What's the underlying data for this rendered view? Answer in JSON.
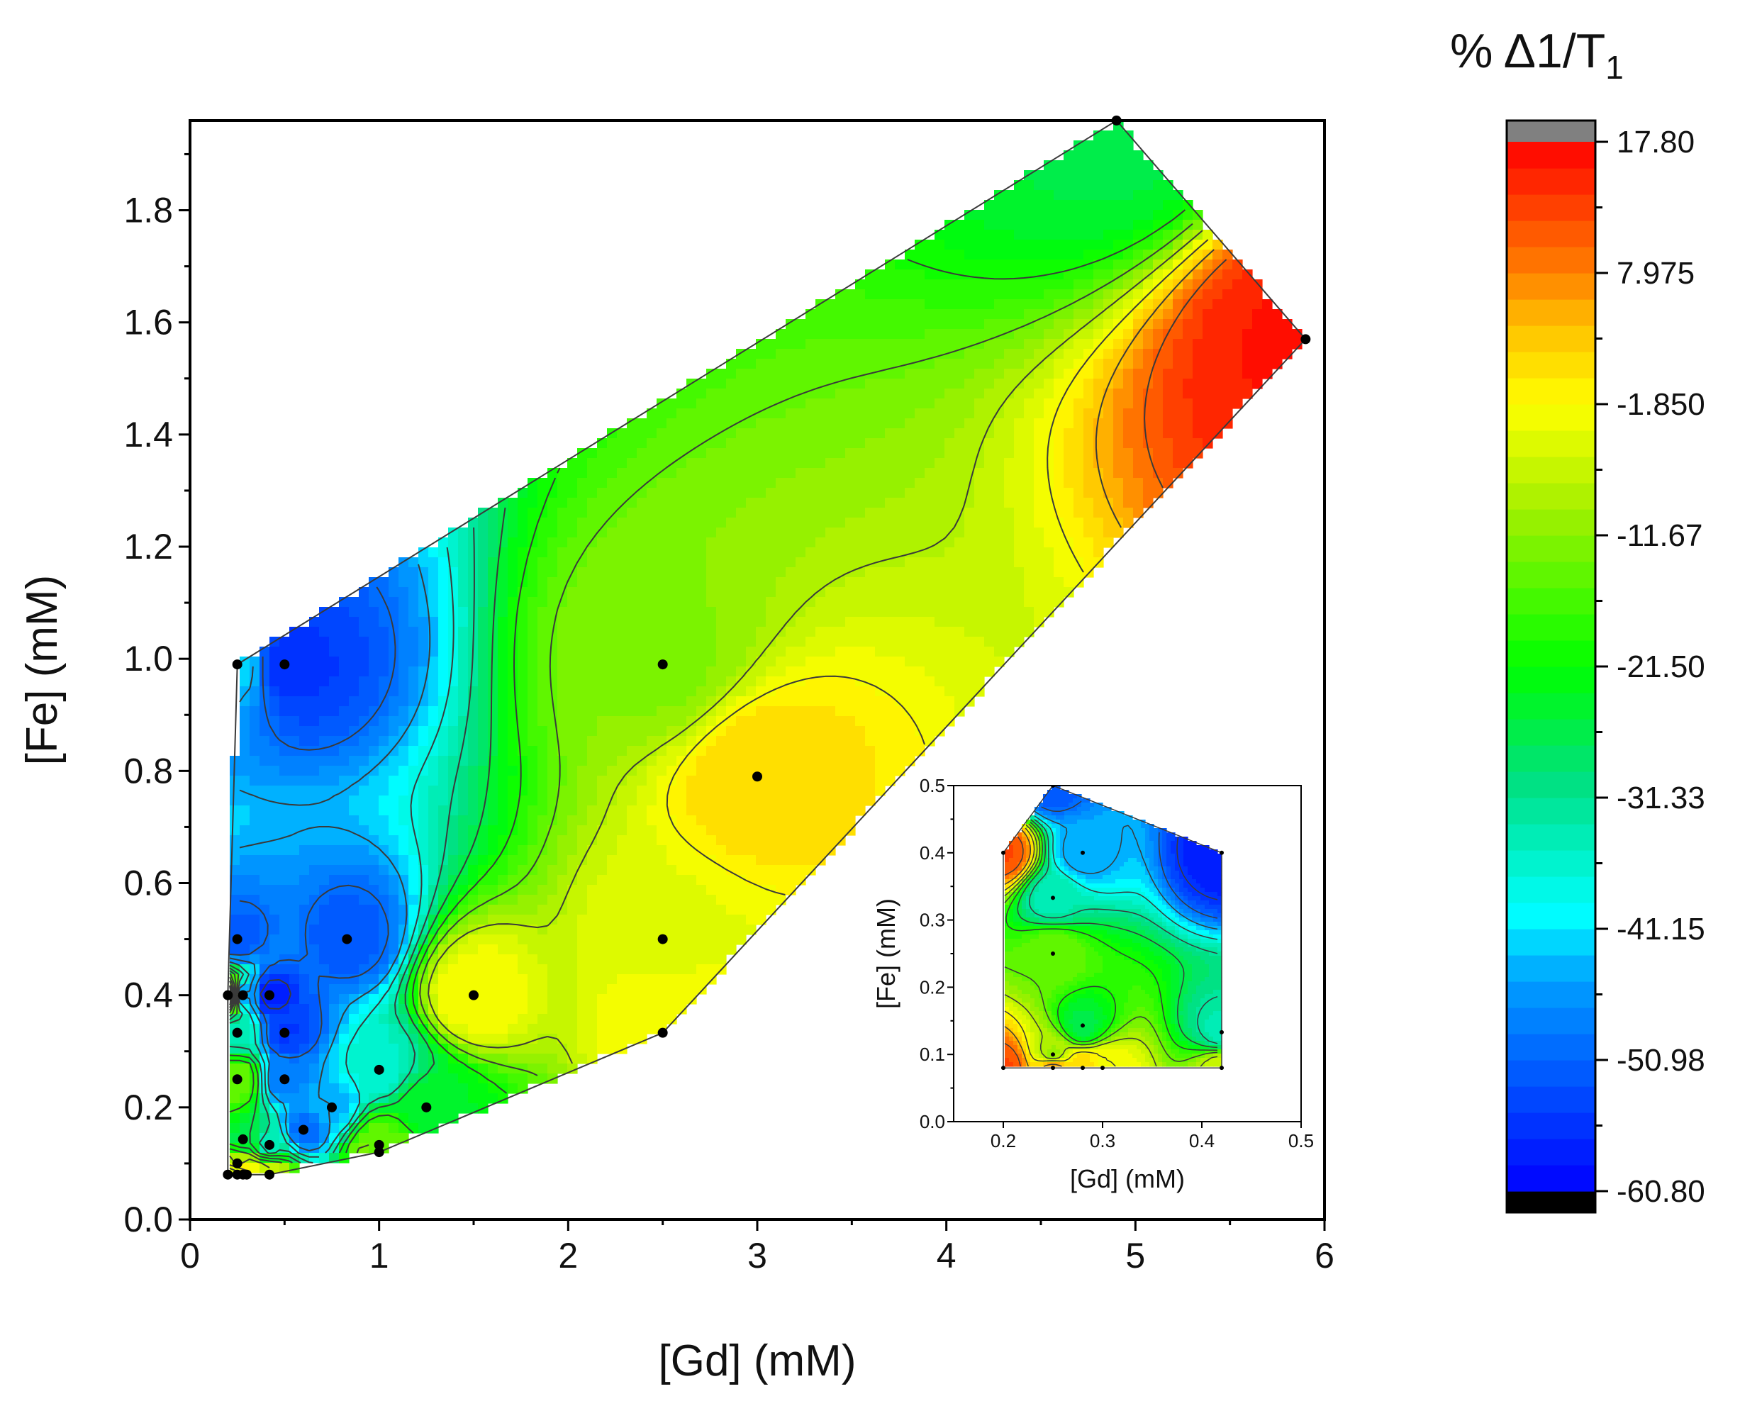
{
  "chart_data": [
    {
      "type": "contour",
      "name": "main",
      "title": "",
      "xlabel": "[Gd] (mM)",
      "ylabel": "[Fe] (mM)",
      "xlim": [
        0,
        6
      ],
      "ylim": [
        0,
        1.96
      ],
      "x_ticks": [
        0,
        1,
        2,
        3,
        4,
        5,
        6
      ],
      "x_tick_labels": [
        "0",
        "1",
        "2",
        "3",
        "4",
        "5",
        "6"
      ],
      "y_ticks": [
        0.0,
        0.2,
        0.4,
        0.6,
        0.8,
        1.0,
        1.2,
        1.4,
        1.6,
        1.8
      ],
      "y_tick_labels": [
        "0.0",
        "0.2",
        "0.4",
        "0.6",
        "0.8",
        "1.0",
        "1.2",
        "1.4",
        "1.6",
        "1.8"
      ],
      "z_label": "% Δ1/T1",
      "points": [
        {
          "x": 0.2,
          "y": 0.08,
          "z": 12
        },
        {
          "x": 0.25,
          "y": 0.08,
          "z": 6
        },
        {
          "x": 0.28,
          "y": 0.08,
          "z": 2
        },
        {
          "x": 0.3,
          "y": 0.08,
          "z": -2
        },
        {
          "x": 0.42,
          "y": 0.08,
          "z": -6
        },
        {
          "x": 0.25,
          "y": 0.1,
          "z": -10
        },
        {
          "x": 0.28,
          "y": 0.143,
          "z": -26
        },
        {
          "x": 0.42,
          "y": 0.133,
          "z": -34
        },
        {
          "x": 0.6,
          "y": 0.16,
          "z": -50
        },
        {
          "x": 0.75,
          "y": 0.2,
          "z": -44
        },
        {
          "x": 1.0,
          "y": 0.12,
          "z": -10
        },
        {
          "x": 1.0,
          "y": 0.133,
          "z": -16
        },
        {
          "x": 1.0,
          "y": 0.267,
          "z": -36
        },
        {
          "x": 1.25,
          "y": 0.2,
          "z": -24
        },
        {
          "x": 0.25,
          "y": 0.25,
          "z": -14
        },
        {
          "x": 0.5,
          "y": 0.25,
          "z": -48
        },
        {
          "x": 0.25,
          "y": 0.333,
          "z": -34
        },
        {
          "x": 0.5,
          "y": 0.333,
          "z": -55
        },
        {
          "x": 0.2,
          "y": 0.4,
          "z": 12
        },
        {
          "x": 0.28,
          "y": 0.4,
          "z": -45
        },
        {
          "x": 0.42,
          "y": 0.4,
          "z": -58
        },
        {
          "x": 0.25,
          "y": 0.5,
          "z": -52
        },
        {
          "x": 0.83,
          "y": 0.5,
          "z": -52
        },
        {
          "x": 1.5,
          "y": 0.4,
          "z": -2
        },
        {
          "x": 2.5,
          "y": 0.333,
          "z": -2
        },
        {
          "x": 2.5,
          "y": 0.5,
          "z": -4
        },
        {
          "x": 3.0,
          "y": 0.79,
          "z": 2
        },
        {
          "x": 2.5,
          "y": 0.99,
          "z": -12
        },
        {
          "x": 0.25,
          "y": 0.99,
          "z": -42
        },
        {
          "x": 0.5,
          "y": 0.99,
          "z": -56
        },
        {
          "x": 4.9,
          "y": 1.96,
          "z": -26
        },
        {
          "x": 5.9,
          "y": 1.57,
          "z": 16
        }
      ]
    },
    {
      "type": "contour",
      "name": "inset",
      "title": "",
      "xlabel": "[Gd] (mM)",
      "ylabel": "[Fe] (mM)",
      "xlim": [
        0.15,
        0.5
      ],
      "ylim": [
        0.0,
        0.5
      ],
      "x_ticks": [
        0.2,
        0.3,
        0.4,
        0.5
      ],
      "x_tick_labels": [
        "0.2",
        "0.3",
        "0.4",
        "0.5"
      ],
      "y_ticks": [
        0.0,
        0.1,
        0.2,
        0.3,
        0.4,
        0.5
      ],
      "y_tick_labels": [
        "0.0",
        "0.1",
        "0.2",
        "0.3",
        "0.4",
        "0.5"
      ],
      "points": [
        {
          "x": 0.2,
          "y": 0.08,
          "z": 12
        },
        {
          "x": 0.25,
          "y": 0.08,
          "z": 6
        },
        {
          "x": 0.28,
          "y": 0.08,
          "z": 2
        },
        {
          "x": 0.3,
          "y": 0.08,
          "z": -2
        },
        {
          "x": 0.42,
          "y": 0.08,
          "z": -6
        },
        {
          "x": 0.25,
          "y": 0.1,
          "z": -10
        },
        {
          "x": 0.28,
          "y": 0.143,
          "z": -26
        },
        {
          "x": 0.42,
          "y": 0.133,
          "z": -34
        },
        {
          "x": 0.25,
          "y": 0.25,
          "z": -14
        },
        {
          "x": 0.25,
          "y": 0.333,
          "z": -34
        },
        {
          "x": 0.2,
          "y": 0.4,
          "z": 12
        },
        {
          "x": 0.28,
          "y": 0.4,
          "z": -45
        },
        {
          "x": 0.42,
          "y": 0.4,
          "z": -58
        },
        {
          "x": 0.25,
          "y": 0.5,
          "z": -52
        }
      ]
    }
  ],
  "colorbar": {
    "title_main": "% Δ1/T",
    "title_sub": "1",
    "min": -60.8,
    "max": 17.8,
    "tick_values": [
      17.8,
      7.975,
      -1.85,
      -11.675,
      -21.5,
      -31.325,
      -41.15,
      -50.975,
      -60.8
    ],
    "tick_labels": [
      "17.80",
      "7.975",
      "-1.850",
      "-11.67",
      "-21.50",
      "-31.33",
      "-41.15",
      "-50.98",
      "-60.80"
    ],
    "levels": 40,
    "over_color": "#808080",
    "under_color": "#000000",
    "stops": [
      {
        "v": -60.8,
        "color": "#0000ff"
      },
      {
        "v": -45.0,
        "color": "#00a0ff"
      },
      {
        "v": -40.0,
        "color": "#00ffff"
      },
      {
        "v": -30.0,
        "color": "#00e080"
      },
      {
        "v": -21.5,
        "color": "#00ff00"
      },
      {
        "v": -10.0,
        "color": "#a0f000"
      },
      {
        "v": -1.85,
        "color": "#ffff00"
      },
      {
        "v": 4.0,
        "color": "#ffc000"
      },
      {
        "v": 8.0,
        "color": "#ff8000"
      },
      {
        "v": 17.8,
        "color": "#ff0000"
      }
    ]
  }
}
